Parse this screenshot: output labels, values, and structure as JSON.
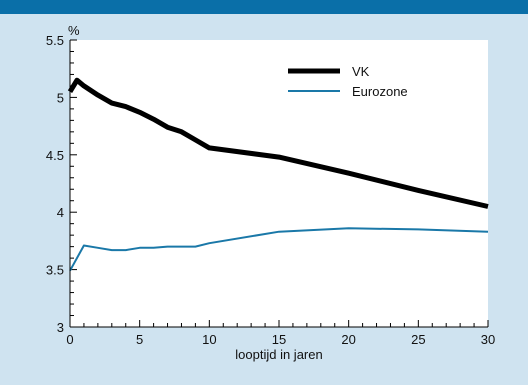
{
  "chart_data": {
    "type": "line",
    "xlabel": "looptijd in jaren",
    "ylabel": "%",
    "xlim": [
      0,
      30
    ],
    "ylim": [
      3,
      5.5
    ],
    "x_ticks": [
      0,
      5,
      10,
      15,
      20,
      25,
      30
    ],
    "y_ticks": [
      3,
      3.5,
      4,
      4.5,
      5,
      5.5
    ],
    "grid": false,
    "legend_position": "top-right",
    "series": [
      {
        "name": "VK",
        "color": "#000000",
        "x": [
          0,
          0.5,
          1,
          2,
          3,
          4,
          5,
          6,
          7,
          8,
          9,
          10,
          15,
          20,
          25,
          30
        ],
        "values": [
          5.05,
          5.15,
          5.1,
          5.02,
          4.95,
          4.92,
          4.87,
          4.81,
          4.74,
          4.7,
          4.63,
          4.56,
          4.48,
          4.34,
          4.19,
          4.05
        ]
      },
      {
        "name": "Eurozone",
        "color": "#1a78a8",
        "x": [
          0,
          1,
          2,
          3,
          4,
          5,
          6,
          7,
          8,
          9,
          10,
          15,
          20,
          25,
          30
        ],
        "values": [
          3.49,
          3.71,
          3.69,
          3.67,
          3.67,
          3.69,
          3.69,
          3.7,
          3.7,
          3.7,
          3.73,
          3.83,
          3.86,
          3.85,
          3.83
        ]
      }
    ]
  }
}
